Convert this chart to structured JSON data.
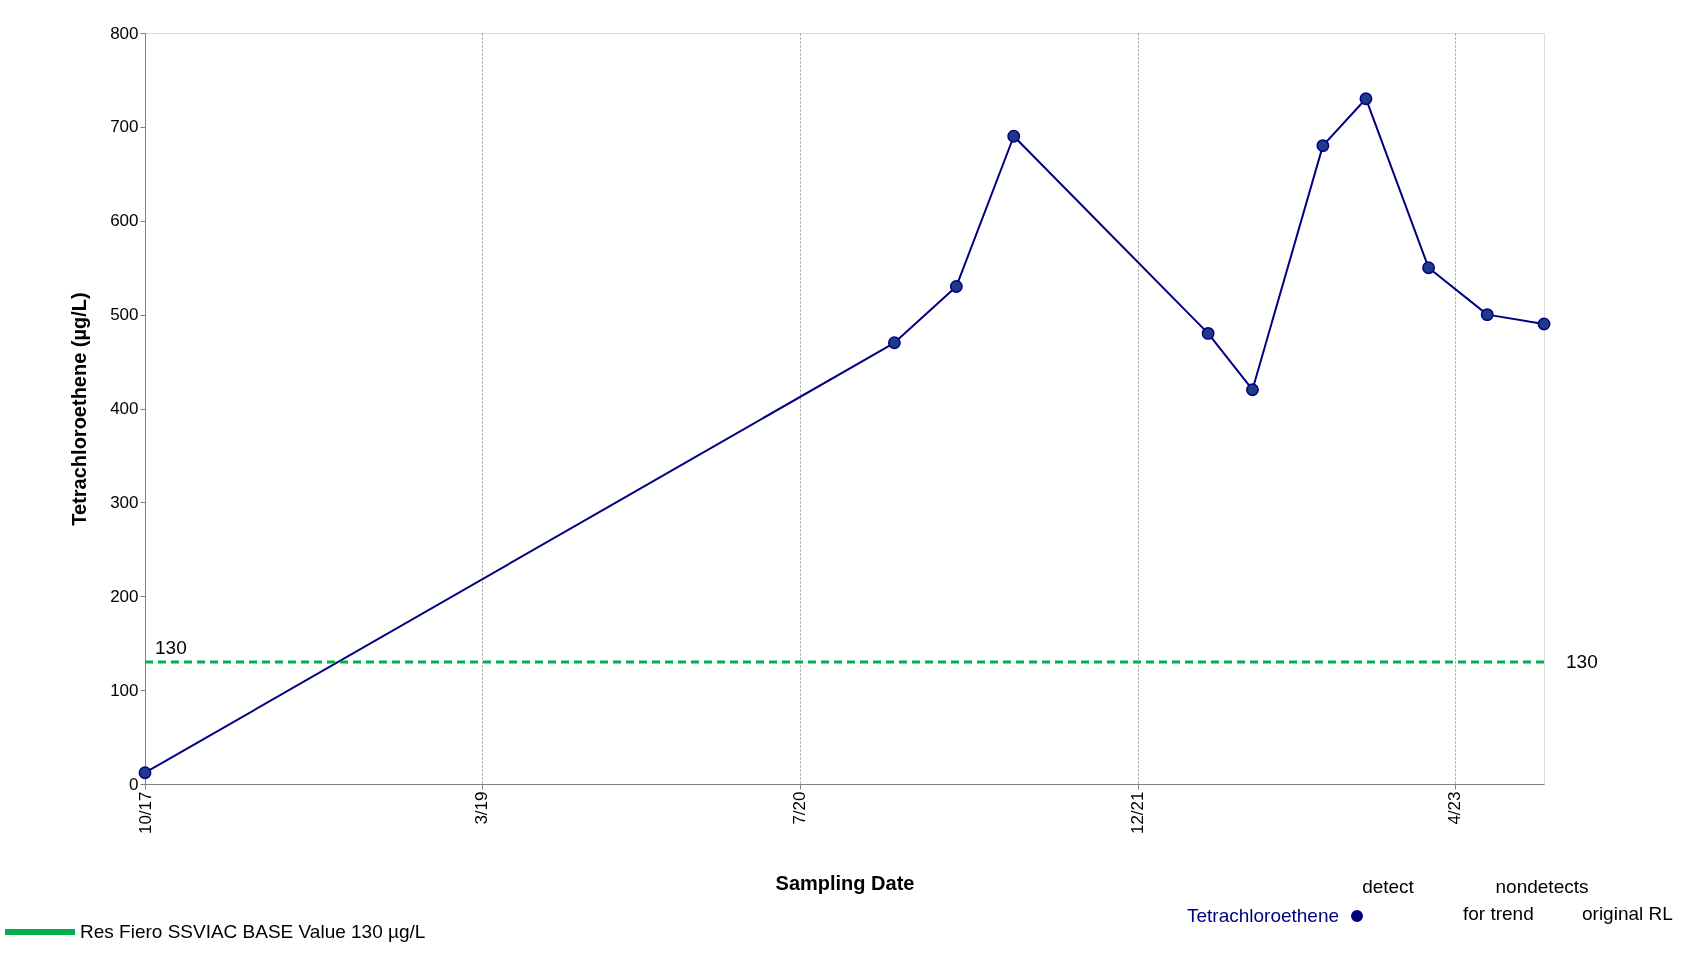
{
  "chart_data": {
    "type": "line",
    "xlabel": "Sampling Date",
    "ylabel": "Tetrachloroethene (µg/L)",
    "x": [
      "2017-10-01",
      "2020-11-23",
      "2021-02-26",
      "2021-05-25",
      "2022-03-19",
      "2022-05-26",
      "2022-09-11",
      "2022-11-16",
      "2023-02-20",
      "2023-05-21",
      "2023-08-16"
    ],
    "series": [
      {
        "name": "Tetrachloroethene",
        "color": "#000080",
        "values": [
          12,
          470,
          530,
          690,
          480,
          420,
          680,
          730,
          550,
          500,
          490
        ]
      }
    ],
    "xlim": [
      "2017-10-01",
      "2023-08-16"
    ],
    "xticks": [
      {
        "value": "2017-10-01",
        "label": "10/17"
      },
      {
        "value": "2019-03-01",
        "label": "3/19"
      },
      {
        "value": "2020-07-01",
        "label": "7/20"
      },
      {
        "value": "2021-12-01",
        "label": "12/21"
      },
      {
        "value": "2023-04-01",
        "label": "4/23"
      }
    ],
    "ylim": [
      0,
      800
    ],
    "yticks": [
      0,
      100,
      200,
      300,
      400,
      500,
      600,
      700,
      800
    ],
    "ref_lines": [
      {
        "axis": "y",
        "value": 130,
        "label": "130",
        "color": "#00b050",
        "line_style": "dashed"
      }
    ],
    "annotations": [
      "Res Fiero SSVIAC BASE Value 130 µg/L",
      "detect",
      "nondetects",
      "for trend",
      "original RL"
    ],
    "grid": "x",
    "marker": "circle",
    "line_style": "solid",
    "legend": "bottom"
  }
}
